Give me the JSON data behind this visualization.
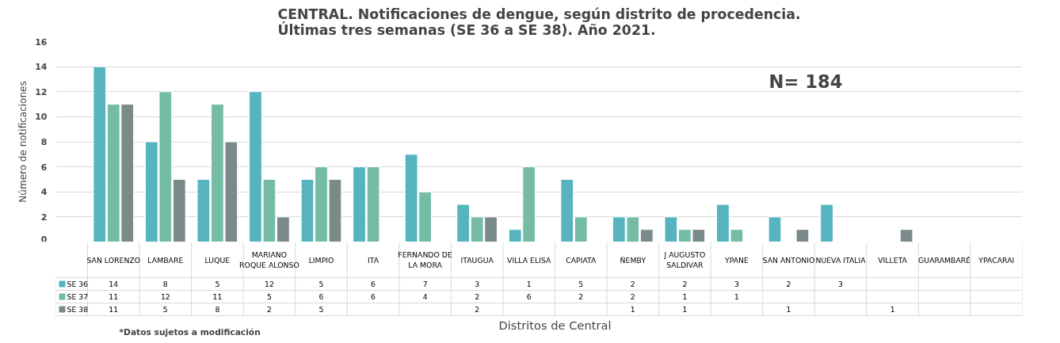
{
  "chart_data": {
    "type": "bar",
    "title": "CENTRAL. Notificaciones de dengue, según distrito de procedencia.\nÚltimas tres semanas (SE 36 a SE 38). Año 2021.",
    "xlabel": "Distritos de Central",
    "ylabel": "Número de notificaciones",
    "categories": [
      "SAN LORENZO",
      "LAMBARE",
      "LUQUE",
      "MARIANO ROQUE ALONSO",
      "LIMPIO",
      "ITA",
      "FERNANDO DE LA MORA",
      "ITAUGUA",
      "VILLA ELISA",
      "CAPIATA",
      "ÑEMBY",
      "J AUGUSTO SALDIVAR",
      "YPANE",
      "SAN ANTONIO",
      "NUEVA ITALIA",
      "VILLETA",
      "GUARAMBARÉ",
      "YPACARAI"
    ],
    "series": [
      {
        "name": "SE 36",
        "color": "#56b3c0",
        "values": [
          14,
          8,
          5,
          12,
          5,
          6,
          7,
          3,
          1,
          5,
          2,
          2,
          3,
          2,
          3,
          null,
          null,
          null
        ]
      },
      {
        "name": "SE 37",
        "color": "#74bca3",
        "values": [
          11,
          12,
          11,
          5,
          6,
          6,
          4,
          2,
          6,
          2,
          2,
          1,
          1,
          null,
          null,
          null,
          null,
          null
        ]
      },
      {
        "name": "SE 38",
        "color": "#7a8a8a",
        "values": [
          11,
          5,
          8,
          2,
          5,
          null,
          null,
          2,
          null,
          null,
          1,
          1,
          null,
          1,
          null,
          1,
          null,
          null
        ]
      }
    ],
    "ylim": [
      0,
      16
    ],
    "yticks": [
      0,
      2,
      4,
      6,
      8,
      10,
      12,
      14,
      16
    ],
    "grid": "y",
    "data_labels": true,
    "legend": "bottom",
    "annotations": [
      "N= 184",
      "*Datos sujetos a modificación"
    ]
  }
}
